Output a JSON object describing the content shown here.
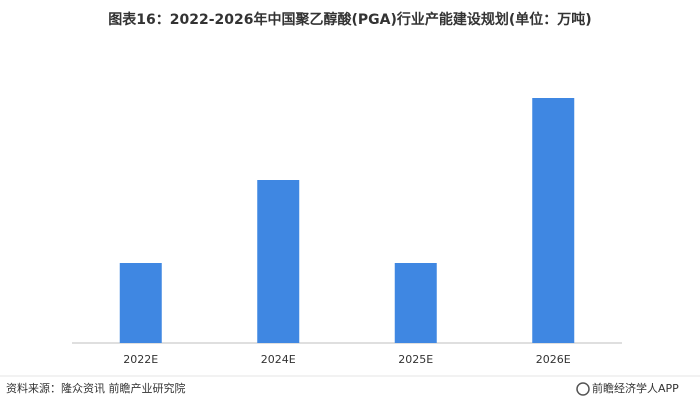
{
  "chart_data": {
    "type": "bar",
    "title": "图表16：2022-2026年中国聚乙醇酸(PGA)行业产能建设规划(单位：万吨)",
    "categories": [
      "2022E",
      "2024E",
      "2025E",
      "2026E"
    ],
    "values": [
      80,
      163,
      80,
      245
    ],
    "color": "#3f87e2",
    "ylim": [
      0,
      250
    ]
  },
  "footer": {
    "source": "资料来源：隆众资讯 前瞻产业研究院",
    "brand": "前瞻经济学人APP"
  }
}
